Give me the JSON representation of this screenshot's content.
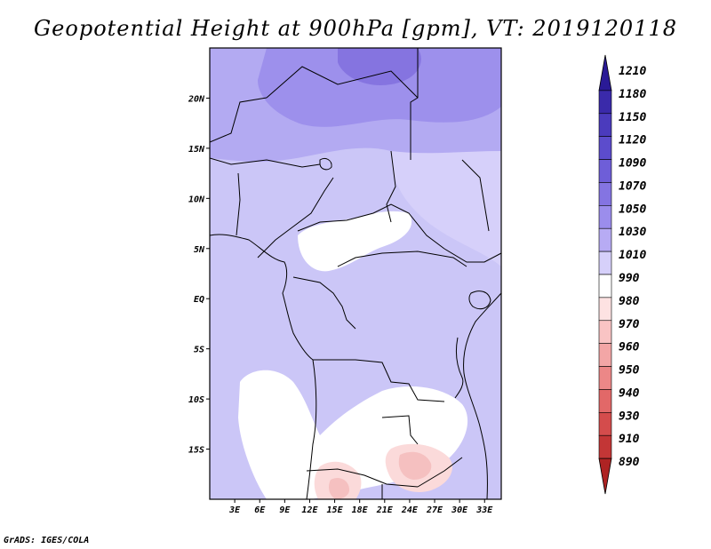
{
  "title": "Geopotential Height at 900hPa [gpm], VT: 2019120118",
  "credit": "GrADS: IGES/COLA",
  "map": {
    "variable": "Geopotential Height",
    "level": "900hPa",
    "units": "gpm",
    "valid_time": "2019120118",
    "lat_labels": [
      "20N",
      "15N",
      "10N",
      "5N",
      "EQ",
      "5S",
      "10S",
      "15S"
    ],
    "lat_values": [
      20,
      15,
      10,
      5,
      0,
      -5,
      -10,
      -15
    ],
    "lon_labels": [
      "3E",
      "6E",
      "9E",
      "12E",
      "15E",
      "18E",
      "21E",
      "24E",
      "27E",
      "30E",
      "33E"
    ],
    "lon_values": [
      3,
      6,
      9,
      12,
      15,
      18,
      21,
      24,
      27,
      30,
      33
    ],
    "lon_range": [
      0,
      35
    ],
    "lat_range": [
      -20,
      25
    ]
  },
  "legend": {
    "levels": [
      "1210",
      "1180",
      "1150",
      "1120",
      "1090",
      "1070",
      "1050",
      "1030",
      "1010",
      "990",
      "980",
      "970",
      "960",
      "950",
      "940",
      "930",
      "910",
      "890"
    ],
    "colors": [
      "#2a1a96",
      "#3a2aaa",
      "#4b3bbd",
      "#5c4ccc",
      "#6e5ed8",
      "#8474e2",
      "#9b8dec",
      "#b7abf4",
      "#d6d0fa",
      "#ffffff",
      "#fde2e2",
      "#f9c4c4",
      "#f3a6a6",
      "#ec8787",
      "#e26868",
      "#d44c4c",
      "#c33636",
      "#ae2323"
    ]
  },
  "colors": {
    "blue_high": "#8574e0",
    "blue_mid": "#b3aaf2",
    "blue_low": "#cbc6f7",
    "pale": "#dcd8fa",
    "white": "#ffffff",
    "pink": "#fbdada",
    "pink_dark": "#f5c0c0"
  }
}
